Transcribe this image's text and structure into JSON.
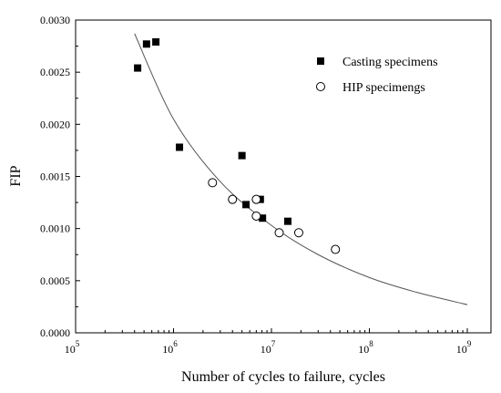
{
  "chart_data": {
    "type": "scatter",
    "xlabel": "Number of cycles to failure, cycles",
    "ylabel": "FIP",
    "xscale": "log",
    "xlim": [
      100000,
      1000000000
    ],
    "ylim": [
      0,
      0.003
    ],
    "x_ticks": [
      {
        "value": 100000,
        "base": "10",
        "exp": "5"
      },
      {
        "value": 1000000,
        "base": "10",
        "exp": "6"
      },
      {
        "value": 10000000,
        "base": "10",
        "exp": "7"
      },
      {
        "value": 100000000,
        "base": "10",
        "exp": "8"
      },
      {
        "value": 1000000000,
        "base": "10",
        "exp": "9"
      }
    ],
    "y_ticks": [
      {
        "value": 0,
        "label": "0.0000"
      },
      {
        "value": 0.0005,
        "label": "0.0005"
      },
      {
        "value": 0.001,
        "label": "0.0010"
      },
      {
        "value": 0.0015,
        "label": "0.0015"
      },
      {
        "value": 0.002,
        "label": "0.0020"
      },
      {
        "value": 0.0025,
        "label": "0.0025"
      },
      {
        "value": 0.003,
        "label": "0.0030"
      }
    ],
    "grid": false,
    "legend_position": "top-right",
    "series": [
      {
        "name": "Casting specimens",
        "marker": "filled-square",
        "color": "#000000",
        "points": [
          {
            "x": 430000,
            "y": 0.00254
          },
          {
            "x": 530000,
            "y": 0.00277
          },
          {
            "x": 660000,
            "y": 0.00279
          },
          {
            "x": 1150000,
            "y": 0.00178
          },
          {
            "x": 5000000,
            "y": 0.0017
          },
          {
            "x": 5500000,
            "y": 0.00123
          },
          {
            "x": 7700000,
            "y": 0.00128
          },
          {
            "x": 8100000,
            "y": 0.0011
          },
          {
            "x": 14700000,
            "y": 0.00107
          }
        ]
      },
      {
        "name": "HIP specimengs",
        "marker": "open-circle",
        "color": "#000000",
        "points": [
          {
            "x": 2500000,
            "y": 0.00144
          },
          {
            "x": 4000000,
            "y": 0.00128
          },
          {
            "x": 7000000,
            "y": 0.00128
          },
          {
            "x": 7000000,
            "y": 0.00112
          },
          {
            "x": 12000000,
            "y": 0.00096
          },
          {
            "x": 19000000,
            "y": 0.00096
          },
          {
            "x": 45000000,
            "y": 0.0008
          }
        ]
      },
      {
        "type": "line",
        "style": "fit-curve",
        "color": "#555555",
        "points": [
          {
            "x": 400000,
            "y": 0.00287
          },
          {
            "x": 1000000,
            "y": 0.00205
          },
          {
            "x": 3000000,
            "y": 0.00145
          },
          {
            "x": 10000000,
            "y": 0.00103
          },
          {
            "x": 30000000,
            "y": 0.00075
          },
          {
            "x": 100000000,
            "y": 0.00053
          },
          {
            "x": 300000000,
            "y": 0.00039
          },
          {
            "x": 1000000000,
            "y": 0.00027
          }
        ]
      }
    ]
  }
}
